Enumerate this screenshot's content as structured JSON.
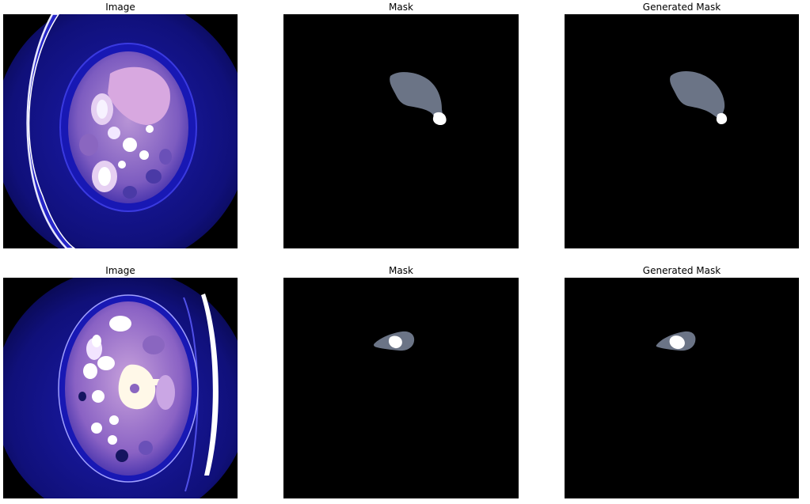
{
  "figure": {
    "rows": [
      {
        "titles": [
          "Image",
          "Mask",
          "Generated Mask"
        ]
      },
      {
        "titles": [
          "Image",
          "Mask",
          "Generated Mask"
        ]
      }
    ]
  },
  "colors": {
    "background": "#000000",
    "ct_scan_tint": "#1f1fc8",
    "ct_soft_tissue": "#c79ad8",
    "organ_mask": "#6b7486",
    "lesion_mask": "#ffffff"
  }
}
